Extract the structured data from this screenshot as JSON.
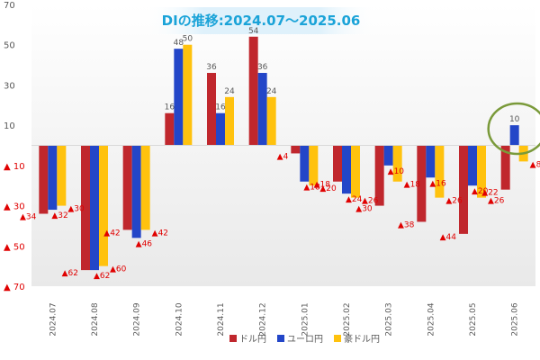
{
  "chart_data": {
    "type": "bar",
    "title": "DIの推移:2024.07～2025.06",
    "categories": [
      "2024.07",
      "2024.08",
      "2024.09",
      "2024.10",
      "2024.11",
      "2024.12",
      "2025.01",
      "2025.02",
      "2025.03",
      "2025.04",
      "2025.05",
      "2025.06"
    ],
    "series": [
      {
        "name": "ドル円",
        "color": "#C0272D",
        "values": [
          -34,
          -62,
          -42,
          16,
          36,
          54,
          -4,
          -18,
          -30,
          -38,
          -44,
          -22
        ],
        "labels": [
          "▲34",
          "▲62",
          "▲42",
          "16",
          "36",
          "54",
          "▲4",
          "▲18",
          "▲30",
          "▲38",
          "▲44",
          "▲22"
        ]
      },
      {
        "name": "ユーロ円",
        "color": "#2346C8",
        "values": [
          -32,
          -62,
          -46,
          48,
          16,
          36,
          -18,
          -24,
          -10,
          -16,
          -20,
          10
        ],
        "labels": [
          "▲32",
          "▲62",
          "▲46",
          "48",
          "16",
          "36",
          "▲18",
          "▲24",
          "▲10",
          "▲16",
          "▲20",
          "10"
        ]
      },
      {
        "name": "豪ドル円",
        "color": "#FFC20E",
        "values": [
          -30,
          -60,
          -42,
          50,
          24,
          24,
          -20,
          -26,
          -18,
          -26,
          -26,
          -8
        ],
        "labels": [
          "▲30",
          "▲60",
          "▲42",
          "50",
          "24",
          "24",
          "▲20",
          "▲26",
          "▲18",
          "▲26",
          "▲26",
          "▲8"
        ]
      }
    ],
    "ylim": [
      -70,
      70
    ],
    "yticks": [
      70,
      50,
      30,
      10,
      -10,
      -30,
      -50,
      -70
    ],
    "ytick_labels": [
      "70",
      "50",
      "30",
      "10",
      "▲ 10",
      "▲ 30",
      "▲ 50",
      "▲ 70"
    ],
    "legend_position": "bottom",
    "grid": false,
    "xlabel": "",
    "ylabel": "",
    "colors": {
      "negative_label": "#E00000",
      "positive_label": "#595959",
      "highlight_circle": "#7A9A3A"
    },
    "highlight": {
      "category": "2025.06"
    }
  }
}
